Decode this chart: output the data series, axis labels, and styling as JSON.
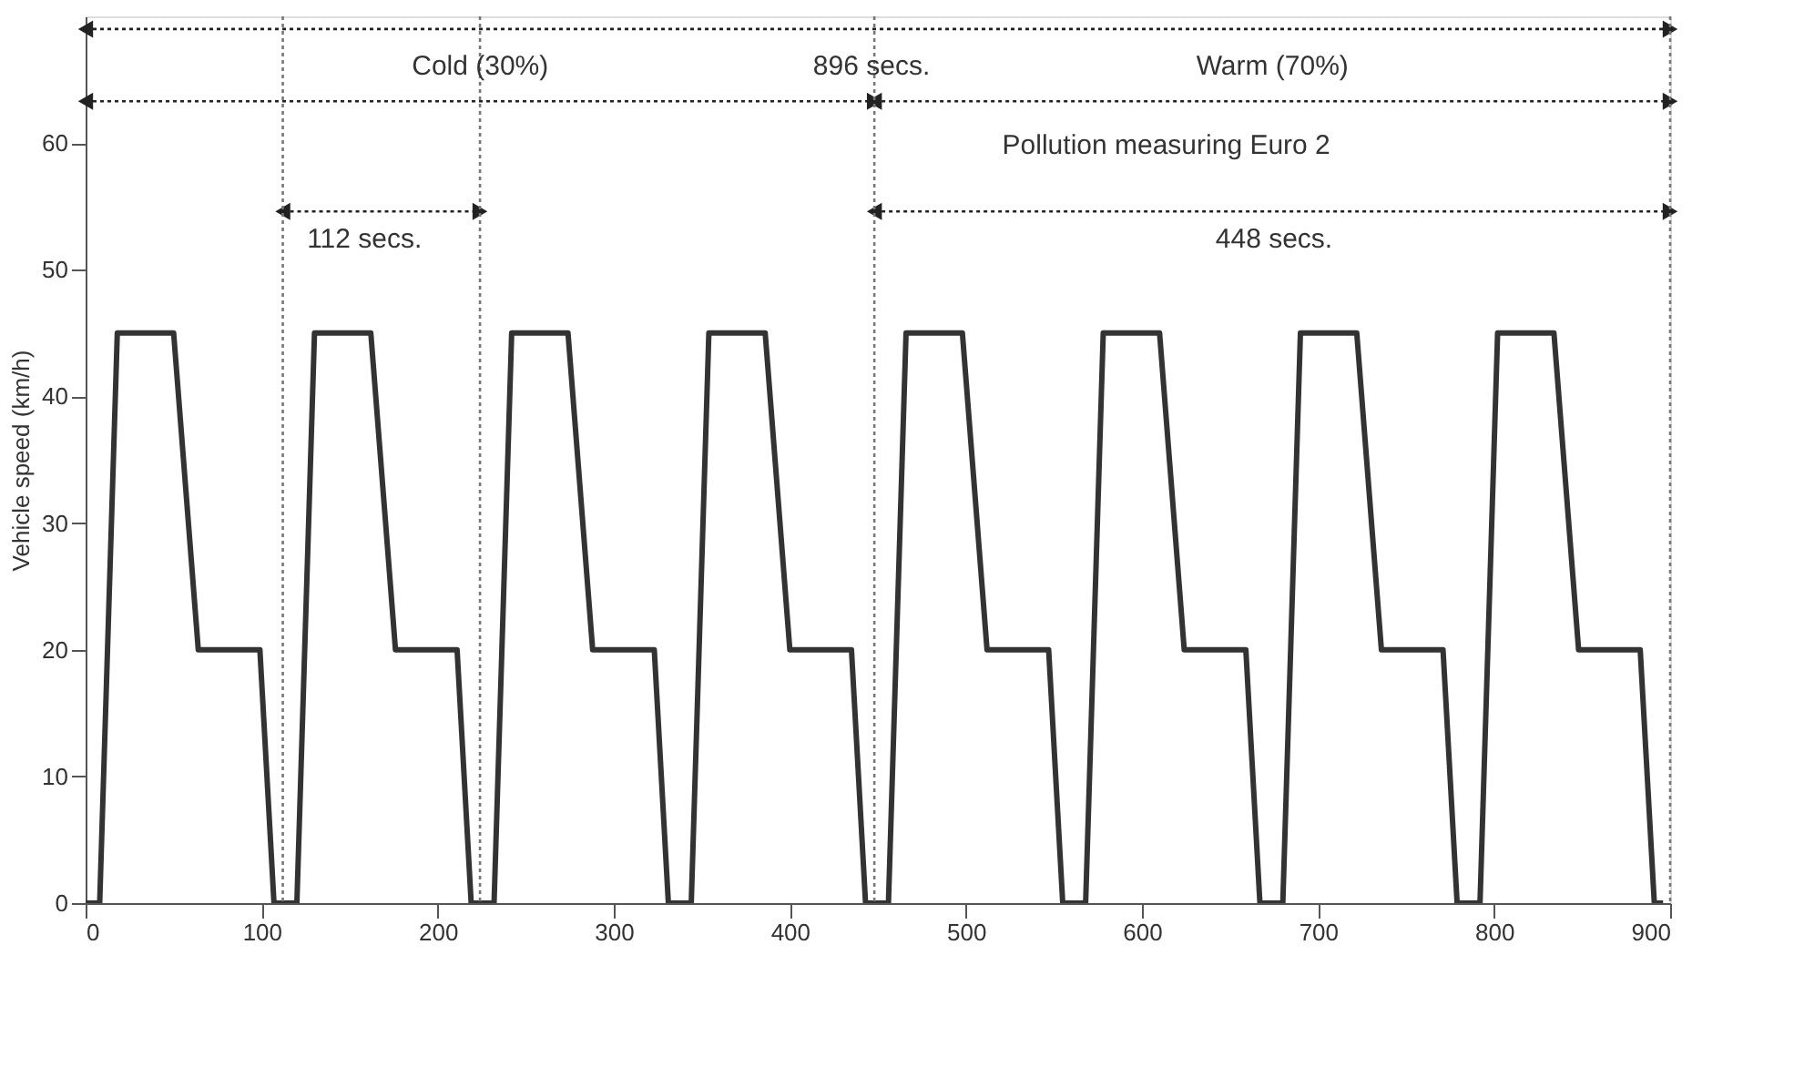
{
  "chart_data": {
    "type": "line",
    "ylabel": "Vehicle speed (km/h)",
    "xlim": [
      0,
      900
    ],
    "xticks": [
      0,
      100,
      200,
      300,
      400,
      500,
      600,
      700,
      800,
      900
    ],
    "ylim": [
      0,
      70
    ],
    "yticks": [
      0,
      10,
      20,
      30,
      40,
      50,
      60
    ],
    "grid": false,
    "series": [
      {
        "color": "#333333",
        "line_style": "solid",
        "x": [
          0,
          8,
          18,
          50,
          64,
          99,
          107,
          112,
          120,
          130,
          162,
          176,
          211,
          219,
          224,
          232,
          242,
          274,
          288,
          323,
          331,
          336,
          344,
          354,
          386,
          400,
          435,
          443,
          448,
          456,
          466,
          498,
          512,
          547,
          555,
          560,
          568,
          578,
          610,
          624,
          659,
          667,
          672,
          680,
          690,
          722,
          736,
          771,
          779,
          784,
          792,
          802,
          834,
          848,
          883,
          891,
          896
        ],
        "values": [
          0,
          0,
          45,
          45,
          20,
          20,
          0,
          0,
          0,
          45,
          45,
          20,
          20,
          0,
          0,
          0,
          45,
          45,
          20,
          20,
          0,
          0,
          0,
          45,
          45,
          20,
          20,
          0,
          0,
          0,
          45,
          45,
          20,
          20,
          0,
          0,
          0,
          45,
          45,
          20,
          20,
          0,
          0,
          0,
          45,
          45,
          20,
          20,
          0,
          0,
          0,
          45,
          45,
          20,
          20,
          0,
          0
        ]
      },
      {
        "type": "line",
        "color": "#222222",
        "line_style": "dotted",
        "marker": "triangle",
        "x": [
          0,
          900
        ],
        "values": [
          69,
          69
        ]
      },
      {
        "type": "line",
        "color": "#222222",
        "line_style": "dotted",
        "marker": "triangle",
        "x": [
          0,
          448
        ],
        "values": [
          63.3,
          63.3
        ]
      },
      {
        "type": "line",
        "color": "#222222",
        "line_style": "dotted",
        "marker": "triangle",
        "x": [
          448,
          900
        ],
        "values": [
          63.3,
          63.3
        ]
      },
      {
        "type": "line",
        "color": "#222222",
        "line_style": "dotted",
        "marker": "triangle",
        "x": [
          112,
          224
        ],
        "values": [
          54.6,
          54.6
        ]
      },
      {
        "type": "line",
        "color": "#222222",
        "line_style": "dotted",
        "marker": "triangle",
        "x": [
          448,
          900
        ],
        "values": [
          54.6,
          54.6
        ]
      }
    ],
    "ref_lines": [
      {
        "axis": "x",
        "value": 112,
        "color": "#777777",
        "line_style": "dotted"
      },
      {
        "axis": "x",
        "value": 224,
        "color": "#777777",
        "line_style": "dotted"
      },
      {
        "axis": "x",
        "value": 448,
        "color": "#777777",
        "line_style": "dotted"
      },
      {
        "axis": "x",
        "value": 900,
        "color": "#777777",
        "line_style": "dotted"
      }
    ],
    "annotations": [
      "Cold (30%)",
      "896 secs.",
      "Warm (70%)",
      "Pollution measuring Euro 2",
      "112 secs.",
      "448 secs."
    ]
  }
}
